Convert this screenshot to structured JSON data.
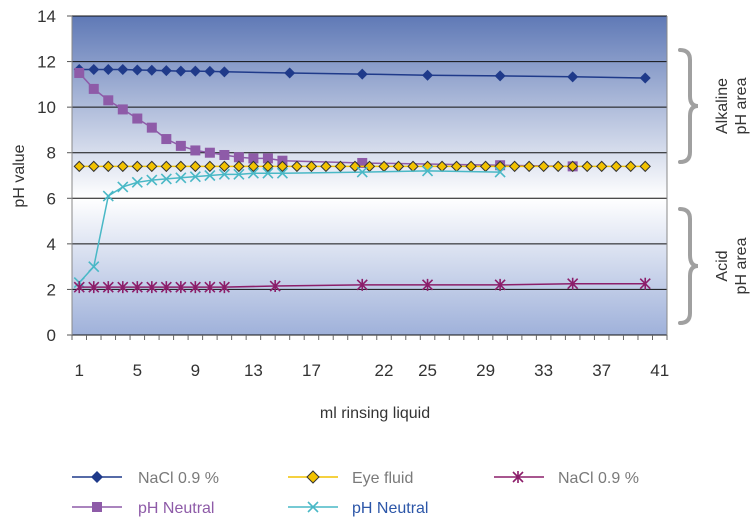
{
  "chart_data": {
    "type": "line",
    "xlabel": "ml rinsing liquid",
    "ylabel": "pH value",
    "ylim": [
      0,
      14
    ],
    "y_ticks": [
      "0",
      "2",
      "4",
      "6",
      "8",
      "10",
      "12",
      "14"
    ],
    "x_tick_labels": [
      "1",
      "5",
      "9",
      "13",
      "17",
      "22",
      "25",
      "29",
      "33",
      "37",
      "41"
    ],
    "grid": "horizontal",
    "legend_position": "bottom",
    "side_labels": {
      "alkaline": [
        "Alkaline",
        "pH area"
      ],
      "acid": [
        "Acid",
        "pH area"
      ]
    },
    "series": [
      {
        "name": "NaCl 0.9 %",
        "color": "#1f3a8a",
        "label_color": "#7a7a7a",
        "marker": "diamond",
        "x": [
          1,
          2,
          3,
          4,
          5,
          6,
          7,
          8,
          9,
          10,
          11,
          15.5,
          20.5,
          25,
          30,
          35,
          40
        ],
        "y": [
          11.65,
          11.65,
          11.65,
          11.65,
          11.63,
          11.62,
          11.6,
          11.58,
          11.58,
          11.57,
          11.55,
          11.5,
          11.45,
          11.4,
          11.37,
          11.33,
          11.28
        ]
      },
      {
        "name": "pH Neutral",
        "color": "#8e5ba8",
        "label_color": "#8e5ba8",
        "marker": "square",
        "x": [
          1,
          2,
          3,
          4,
          5,
          6,
          7,
          8,
          9,
          10,
          11,
          12,
          13,
          14,
          15,
          20.5,
          30,
          35
        ],
        "y": [
          11.5,
          10.8,
          10.3,
          9.9,
          9.5,
          9.1,
          8.6,
          8.3,
          8.1,
          8.0,
          7.9,
          7.8,
          7.75,
          7.75,
          7.65,
          7.55,
          7.45,
          7.4
        ]
      },
      {
        "name": "Eye fluid",
        "color": "#f2c200",
        "label_color": "#7a7a7a",
        "marker": "diamond-yellow",
        "x": [
          1,
          2,
          3,
          4,
          5,
          6,
          7,
          8,
          9,
          10,
          11,
          12,
          13,
          14,
          15,
          16,
          17,
          18,
          19,
          20,
          21,
          22,
          23,
          24,
          25,
          26,
          27,
          28,
          29,
          30,
          31,
          32,
          33,
          34,
          35,
          36,
          37,
          38,
          39,
          40
        ],
        "y": [
          7.4,
          7.4,
          7.4,
          7.4,
          7.4,
          7.4,
          7.4,
          7.4,
          7.4,
          7.4,
          7.4,
          7.4,
          7.4,
          7.4,
          7.4,
          7.4,
          7.4,
          7.4,
          7.4,
          7.4,
          7.4,
          7.4,
          7.4,
          7.4,
          7.4,
          7.4,
          7.4,
          7.4,
          7.4,
          7.4,
          7.4,
          7.4,
          7.4,
          7.4,
          7.4,
          7.4,
          7.4,
          7.4,
          7.4,
          7.4
        ]
      },
      {
        "name": "pH Neutral",
        "color": "#49b8c6",
        "label_color": "#2c56a8",
        "marker": "x",
        "x": [
          1,
          2,
          3,
          4,
          5,
          6,
          7,
          8,
          9,
          10,
          11,
          12,
          13,
          14,
          15,
          20.5,
          25,
          30
        ],
        "y": [
          2.3,
          3.0,
          6.1,
          6.5,
          6.7,
          6.8,
          6.85,
          6.9,
          6.95,
          7.0,
          7.05,
          7.05,
          7.1,
          7.1,
          7.1,
          7.15,
          7.2,
          7.15
        ]
      },
      {
        "name": "NaCl 0.9 %",
        "color": "#8c1e6a",
        "label_color": "#7a7a7a",
        "marker": "asterisk",
        "x": [
          1,
          2,
          3,
          4,
          5,
          6,
          7,
          8,
          9,
          10,
          11,
          14.5,
          20.5,
          25,
          30,
          35,
          40
        ],
        "y": [
          2.1,
          2.1,
          2.1,
          2.1,
          2.1,
          2.1,
          2.1,
          2.1,
          2.1,
          2.1,
          2.1,
          2.15,
          2.2,
          2.2,
          2.2,
          2.25,
          2.25
        ]
      }
    ]
  }
}
